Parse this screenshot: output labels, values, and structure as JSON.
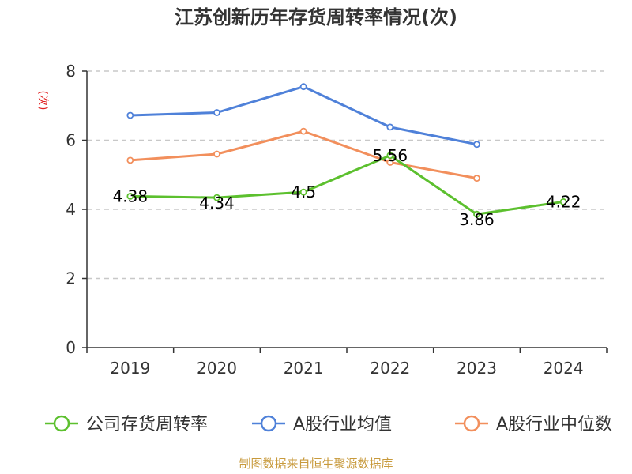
{
  "chart_data": {
    "type": "line",
    "title": "江苏创新历年存货周转率情况(次)",
    "ylabel": "(次)",
    "categories": [
      "2019",
      "2020",
      "2021",
      "2022",
      "2023",
      "2024"
    ],
    "yticks": [
      "0",
      "2",
      "4",
      "6",
      "8"
    ],
    "ylim": [
      0,
      8
    ],
    "grid": true,
    "legend_position": "bottom",
    "series": [
      {
        "name": "公司存货周转率",
        "color": "#5cc02e",
        "values": [
          4.38,
          4.34,
          4.5,
          5.56,
          3.86,
          4.22
        ],
        "labels": [
          "4.38",
          "4.34",
          "4.5",
          "5.56",
          "3.86",
          "4.22"
        ]
      },
      {
        "name": "A股行业均值",
        "color": "#4f81d9",
        "values": [
          6.72,
          6.8,
          7.55,
          6.38,
          5.88,
          null
        ]
      },
      {
        "name": "A股行业中位数",
        "color": "#f28f5c",
        "values": [
          5.42,
          5.6,
          6.26,
          5.36,
          4.9,
          null
        ]
      }
    ]
  },
  "source": "制图数据来自恒生聚源数据库"
}
